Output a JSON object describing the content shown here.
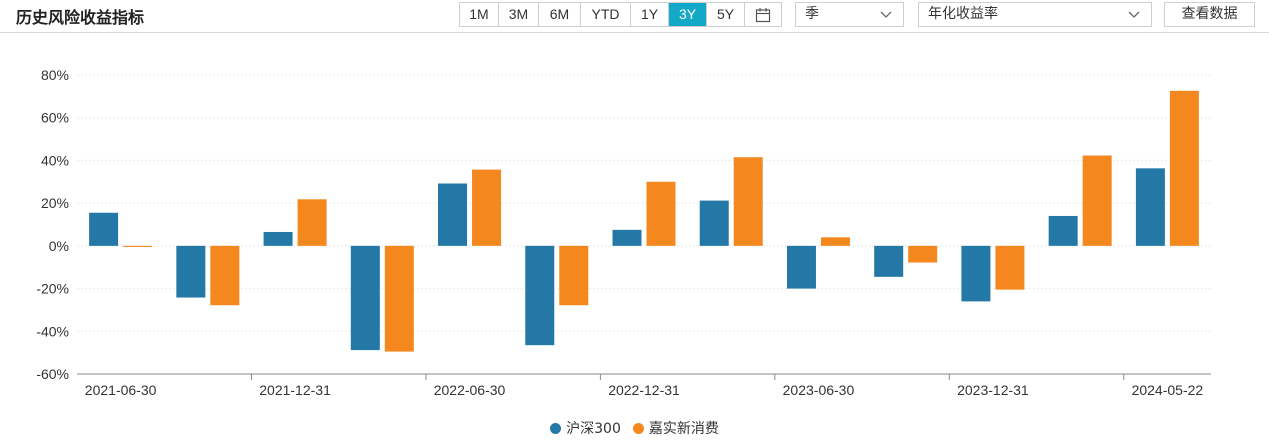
{
  "header": {
    "title": "历史风险收益指标",
    "ranges": [
      "1M",
      "3M",
      "6M",
      "YTD",
      "1Y",
      "3Y",
      "5Y"
    ],
    "active_range": "3Y",
    "period_select": "季",
    "metric_select": "年化收益率",
    "view_data_label": "查看数据"
  },
  "colors": {
    "accent": "#13a8c8",
    "series_1": "#2378a6",
    "series_2": "#f5871f"
  },
  "chart_data": {
    "type": "bar",
    "categories": [
      "2021Q2",
      "2021Q3",
      "2021Q4",
      "2022Q1",
      "2022Q2",
      "2022Q3",
      "2022Q4",
      "2023Q1",
      "2023Q2",
      "2023Q3",
      "2023Q4",
      "2024Q1",
      "2024Q2"
    ],
    "x_tick_labels": [
      "2021-06-30",
      "2021-12-31",
      "2022-06-30",
      "2022-12-31",
      "2023-06-30",
      "2023-12-31",
      "2024-05-22"
    ],
    "series": [
      {
        "name": "沪深300",
        "values": [
          15.5,
          -24.2,
          6.5,
          -48.8,
          29.2,
          -46.5,
          7.5,
          21.2,
          -20.0,
          -14.5,
          -26.0,
          14.0,
          36.3
        ]
      },
      {
        "name": "嘉实新消费",
        "values": [
          -0.5,
          -27.8,
          21.8,
          -49.5,
          35.7,
          -27.8,
          30.0,
          41.5,
          4.0,
          -7.8,
          -20.5,
          42.3,
          72.6
        ]
      }
    ],
    "y_ticks": [
      "80%",
      "60%",
      "40%",
      "20%",
      "0%",
      "-20%",
      "-40%",
      "-60%"
    ],
    "ylim": [
      -60,
      80
    ],
    "grid": true,
    "legend": "bottom-center"
  }
}
